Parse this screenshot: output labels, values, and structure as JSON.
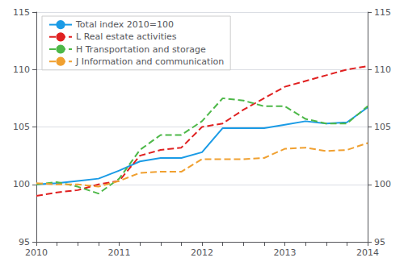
{
  "chart_data": {
    "type": "line",
    "categories": [
      "2010",
      null,
      null,
      null,
      "2011",
      null,
      null,
      null,
      "2012",
      null,
      null,
      null,
      "2013",
      null,
      null,
      null,
      "2014"
    ],
    "series": [
      {
        "name": "Total index 2010=100",
        "color": "#1a9be6",
        "line_style": "solid",
        "values": [
          100.0,
          100.1,
          100.3,
          100.5,
          101.2,
          102.0,
          102.3,
          102.3,
          102.8,
          104.9,
          104.9,
          104.9,
          105.2,
          105.5,
          105.3,
          105.4,
          106.7
        ]
      },
      {
        "name": "L Real estate activities",
        "color": "#e02020",
        "line_style": "dashed",
        "values": [
          99.0,
          99.3,
          99.5,
          100.0,
          100.3,
          102.5,
          103.0,
          103.2,
          105.0,
          105.3,
          106.5,
          107.5,
          108.5,
          109.0,
          109.5,
          110.0,
          110.3
        ]
      },
      {
        "name": "H Transportation and storage",
        "color": "#4db848",
        "line_style": "dashed",
        "values": [
          100.0,
          100.2,
          99.8,
          99.2,
          100.5,
          103.0,
          104.3,
          104.3,
          105.5,
          107.5,
          107.3,
          106.8,
          106.8,
          105.7,
          105.3,
          105.3,
          106.8
        ]
      },
      {
        "name": "J Information and communication",
        "color": "#f0a030",
        "line_style": "dashed",
        "values": [
          100.1,
          100.0,
          100.0,
          99.8,
          100.3,
          101.0,
          101.1,
          101.1,
          102.2,
          102.2,
          102.2,
          102.3,
          103.1,
          103.2,
          102.9,
          103.0,
          103.6
        ]
      }
    ],
    "ylim": [
      95,
      115
    ],
    "yticks": [
      95,
      100,
      105,
      110,
      115
    ],
    "y2lim": [
      95,
      115
    ],
    "y2ticks": [
      95,
      100,
      105,
      110,
      115
    ],
    "grid": true,
    "legend": "upper left"
  }
}
